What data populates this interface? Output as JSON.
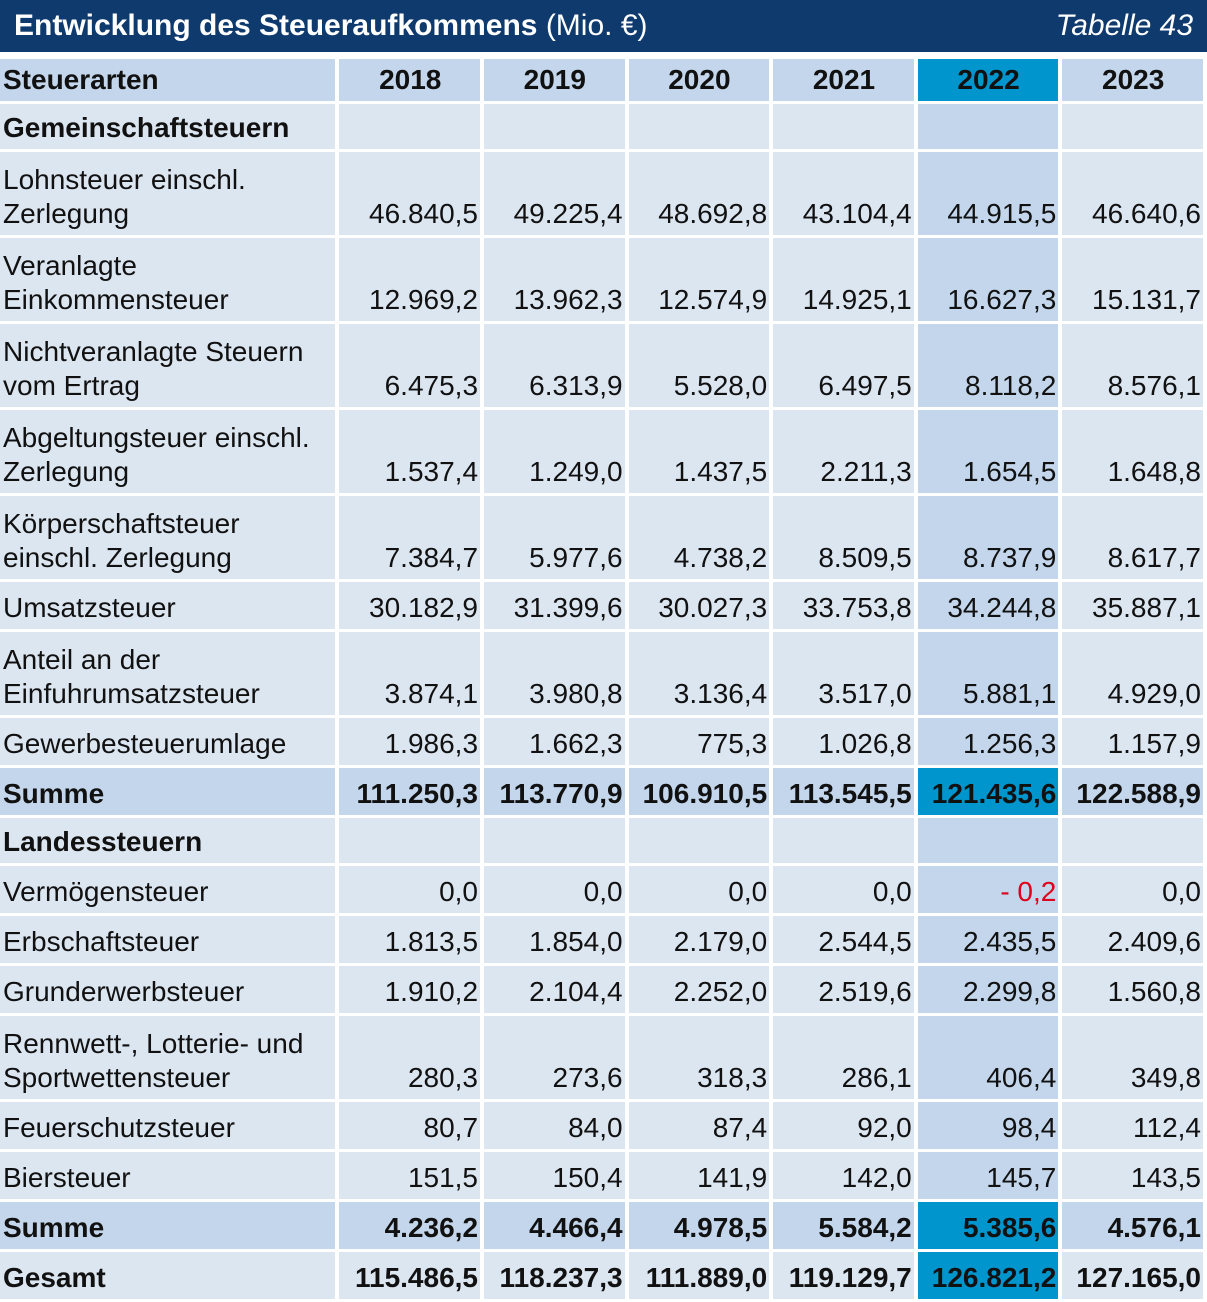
{
  "title": {
    "main_bold": "Entwicklung des Steueraufkommens",
    "main_unit": "(Mio. €)",
    "table_ref": "Tabelle 43"
  },
  "header": {
    "label": "Steuerarten",
    "years": [
      "2018",
      "2019",
      "2020",
      "2021",
      "2022",
      "2023"
    ]
  },
  "sections": [
    {
      "name": "Gemeinschaftsteuern",
      "rows": [
        {
          "label": "Lohnsteuer einschl. Zerlegung",
          "values": [
            "46.840,5",
            "49.225,4",
            "48.692,8",
            "43.104,4",
            "44.915,5",
            "46.640,6"
          ]
        },
        {
          "label": "Veranlagte Einkommensteuer",
          "values": [
            "12.969,2",
            "13.962,3",
            "12.574,9",
            "14.925,1",
            "16.627,3",
            "15.131,7"
          ]
        },
        {
          "label": "Nichtveranlagte Steuern vom Ertrag",
          "values": [
            "6.475,3",
            "6.313,9",
            "5.528,0",
            "6.497,5",
            "8.118,2",
            "8.576,1"
          ]
        },
        {
          "label": "Abgeltungsteuer einschl. Zerlegung",
          "values": [
            "1.537,4",
            "1.249,0",
            "1.437,5",
            "2.211,3",
            "1.654,5",
            "1.648,8"
          ]
        },
        {
          "label": "Körperschaftsteuer einschl. Zerlegung",
          "values": [
            "7.384,7",
            "5.977,6",
            "4.738,2",
            "8.509,5",
            "8.737,9",
            "8.617,7"
          ]
        },
        {
          "label": "Umsatzsteuer",
          "values": [
            "30.182,9",
            "31.399,6",
            "30.027,3",
            "33.753,8",
            "34.244,8",
            "35.887,1"
          ]
        },
        {
          "label": "Anteil an der Einfuhrumsatzsteuer",
          "values": [
            "3.874,1",
            "3.980,8",
            "3.136,4",
            "3.517,0",
            "5.881,1",
            "4.929,0"
          ]
        },
        {
          "label": "Gewerbesteuerumlage",
          "values": [
            "1.986,3",
            "1.662,3",
            "775,3",
            "1.026,8",
            "1.256,3",
            "1.157,9"
          ]
        }
      ],
      "sum": {
        "label": "Summe",
        "values": [
          "111.250,3",
          "113.770,9",
          "106.910,5",
          "113.545,5",
          "121.435,6",
          "122.588,9"
        ]
      }
    },
    {
      "name": "Landessteuern",
      "rows": [
        {
          "label": "Vermögensteuer",
          "values": [
            "0,0",
            "0,0",
            "0,0",
            "0,0",
            "- 0,2",
            "0,0"
          ]
        },
        {
          "label": "Erbschaftsteuer",
          "values": [
            "1.813,5",
            "1.854,0",
            "2.179,0",
            "2.544,5",
            "2.435,5",
            "2.409,6"
          ]
        },
        {
          "label": "Grunderwerbsteuer",
          "values": [
            "1.910,2",
            "2.104,4",
            "2.252,0",
            "2.519,6",
            "2.299,8",
            "1.560,8"
          ]
        },
        {
          "label": "Rennwett-, Lotterie- und Sportwettensteuer",
          "values": [
            "280,3",
            "273,6",
            "318,3",
            "286,1",
            "406,4",
            "349,8"
          ]
        },
        {
          "label": "Feuerschutzsteuer",
          "values": [
            "80,7",
            "84,0",
            "87,4",
            "92,0",
            "98,4",
            "112,4"
          ]
        },
        {
          "label": "Biersteuer",
          "values": [
            "151,5",
            "150,4",
            "141,9",
            "142,0",
            "145,7",
            "143,5"
          ]
        }
      ],
      "sum": {
        "label": "Summe",
        "values": [
          "4.236,2",
          "4.466,4",
          "4.978,5",
          "5.584,2",
          "5.385,6",
          "4.576,1"
        ]
      }
    }
  ],
  "total": {
    "label": "Gesamt",
    "values": [
      "115.486,5",
      "118.237,3",
      "111.889,0",
      "119.129,7",
      "126.821,2",
      "127.165,0"
    ]
  },
  "colors": {
    "title_bar": "#0f3a6e",
    "header_cell": "#c3d6eb",
    "body_cell": "#dce6f1",
    "highlight_year": "#0095cc",
    "negative_value": "#e0001b"
  }
}
